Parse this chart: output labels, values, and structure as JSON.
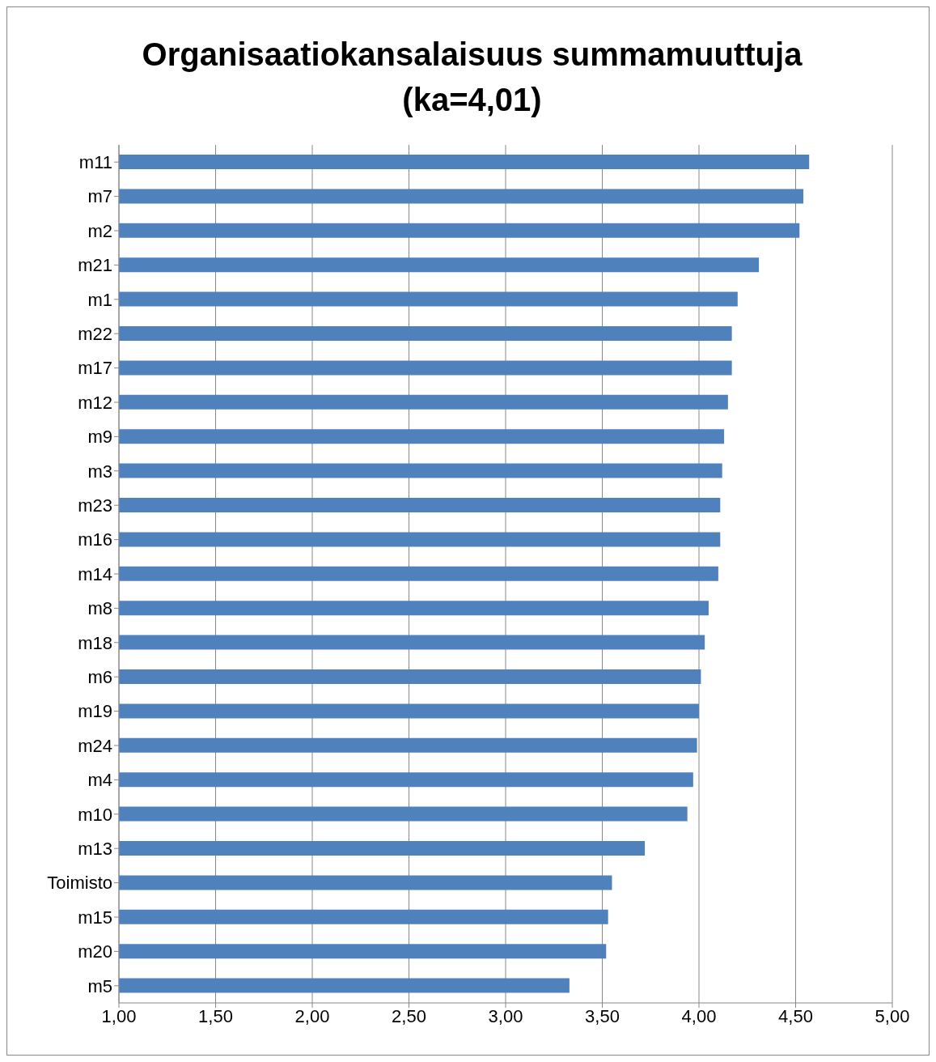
{
  "chart_data": {
    "type": "bar",
    "orientation": "horizontal",
    "title": "Organisaatiokansalaisuus summamuuttuja (ka=4,01)",
    "categories": [
      "m11",
      "m7",
      "m2",
      "m21",
      "m1",
      "m22",
      "m17",
      "m12",
      "m9",
      "m3",
      "m23",
      "m16",
      "m14",
      "m8",
      "m18",
      "m6",
      "m19",
      "m24",
      "m4",
      "m10",
      "m13",
      "Toimisto",
      "m15",
      "m20",
      "m5"
    ],
    "values": [
      4.57,
      4.54,
      4.52,
      4.31,
      4.2,
      4.17,
      4.17,
      4.15,
      4.13,
      4.12,
      4.11,
      4.11,
      4.1,
      4.05,
      4.03,
      4.01,
      4.0,
      3.99,
      3.97,
      3.94,
      3.72,
      3.55,
      3.53,
      3.52,
      3.33
    ],
    "color": "#4f81bd",
    "xlim": [
      1,
      5
    ],
    "xticks": [
      {
        "value": 1,
        "label": "1,00"
      },
      {
        "value": 1.5,
        "label": "1,50"
      },
      {
        "value": 2,
        "label": "2,00"
      },
      {
        "value": 2.5,
        "label": "2,50"
      },
      {
        "value": 3,
        "label": "3,00"
      },
      {
        "value": 3.5,
        "label": "3,50"
      },
      {
        "value": 4,
        "label": "4,00"
      },
      {
        "value": 4.5,
        "label": "4,50"
      },
      {
        "value": 5,
        "label": "5,00"
      }
    ],
    "grid": "x"
  }
}
